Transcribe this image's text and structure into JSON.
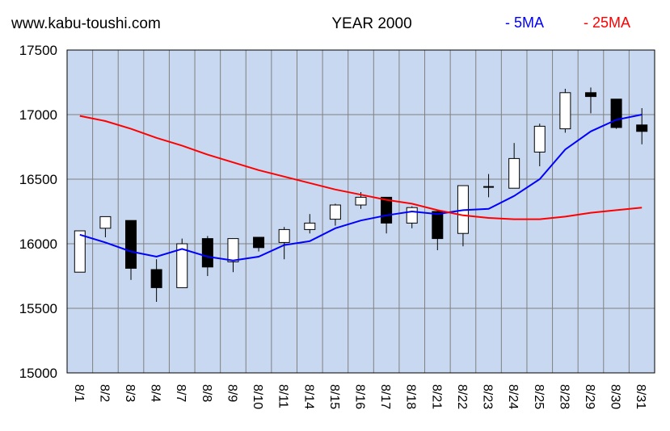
{
  "header": {
    "site": "www.kabu-toushi.com",
    "title": "YEAR 2000",
    "legend": [
      {
        "label": "- 5MA",
        "color": "#0000ff"
      },
      {
        "label": "- 25MA",
        "color": "#ff0000"
      }
    ]
  },
  "colors": {
    "plot_background": "#c8d8f0",
    "grid": "#808080",
    "candle_up": "#ffffff",
    "candle_down": "#000000",
    "ma5": "#0000ff",
    "ma25": "#ff0000"
  },
  "chart_data": {
    "type": "candlestick",
    "ylim": [
      15000,
      17500
    ],
    "yticks": [
      15000,
      15500,
      16000,
      16500,
      17000,
      17500
    ],
    "grid": true,
    "legend_position": "top-right",
    "categories": [
      "8/1",
      "8/2",
      "8/3",
      "8/4",
      "8/7",
      "8/8",
      "8/9",
      "8/10",
      "8/11",
      "8/14",
      "8/15",
      "8/16",
      "8/17",
      "8/18",
      "8/21",
      "8/22",
      "8/23",
      "8/24",
      "8/25",
      "8/28",
      "8/29",
      "8/30",
      "8/31"
    ],
    "candles": [
      {
        "open": 15780,
        "close": 16100,
        "high": 16100,
        "low": 15780
      },
      {
        "open": 16120,
        "close": 16210,
        "high": 16210,
        "low": 16050
      },
      {
        "open": 16180,
        "close": 15810,
        "high": 16180,
        "low": 15720
      },
      {
        "open": 15800,
        "close": 15660,
        "high": 15880,
        "low": 15550
      },
      {
        "open": 15660,
        "close": 16000,
        "high": 16040,
        "low": 15660
      },
      {
        "open": 16040,
        "close": 15820,
        "high": 16060,
        "low": 15750
      },
      {
        "open": 15860,
        "close": 16040,
        "high": 16040,
        "low": 15780
      },
      {
        "open": 16050,
        "close": 15970,
        "high": 16050,
        "low": 15940
      },
      {
        "open": 16010,
        "close": 16110,
        "high": 16130,
        "low": 15880
      },
      {
        "open": 16110,
        "close": 16160,
        "high": 16230,
        "low": 16080
      },
      {
        "open": 16190,
        "close": 16300,
        "high": 16310,
        "low": 16140
      },
      {
        "open": 16300,
        "close": 16360,
        "high": 16400,
        "low": 16270
      },
      {
        "open": 16360,
        "close": 16160,
        "high": 16360,
        "low": 16080
      },
      {
        "open": 16160,
        "close": 16280,
        "high": 16290,
        "low": 16120
      },
      {
        "open": 16250,
        "close": 16040,
        "high": 16260,
        "low": 15950
      },
      {
        "open": 16080,
        "close": 16450,
        "high": 16450,
        "low": 15980
      },
      {
        "open": 16440,
        "close": 16440,
        "high": 16540,
        "low": 16360
      },
      {
        "open": 16430,
        "close": 16660,
        "high": 16780,
        "low": 16430
      },
      {
        "open": 16710,
        "close": 16910,
        "high": 16930,
        "low": 16600
      },
      {
        "open": 16890,
        "close": 17170,
        "high": 17200,
        "low": 16860
      },
      {
        "open": 17170,
        "close": 17140,
        "high": 17210,
        "low": 17010
      },
      {
        "open": 17120,
        "close": 16900,
        "high": 17120,
        "low": 16890
      },
      {
        "open": 16920,
        "close": 16870,
        "high": 17050,
        "low": 16770
      }
    ],
    "series": [
      {
        "name": "5MA",
        "values": [
          16070,
          16010,
          15940,
          15900,
          15960,
          15900,
          15870,
          15900,
          15990,
          16020,
          16120,
          16180,
          16220,
          16250,
          16230,
          16260,
          16270,
          16370,
          16500,
          16730,
          16870,
          16960,
          17000
        ]
      },
      {
        "name": "25MA",
        "values": [
          16990,
          16950,
          16890,
          16820,
          16760,
          16690,
          16630,
          16570,
          16520,
          16470,
          16420,
          16380,
          16340,
          16310,
          16260,
          16220,
          16200,
          16190,
          16190,
          16210,
          16240,
          16260,
          16280
        ]
      }
    ]
  }
}
